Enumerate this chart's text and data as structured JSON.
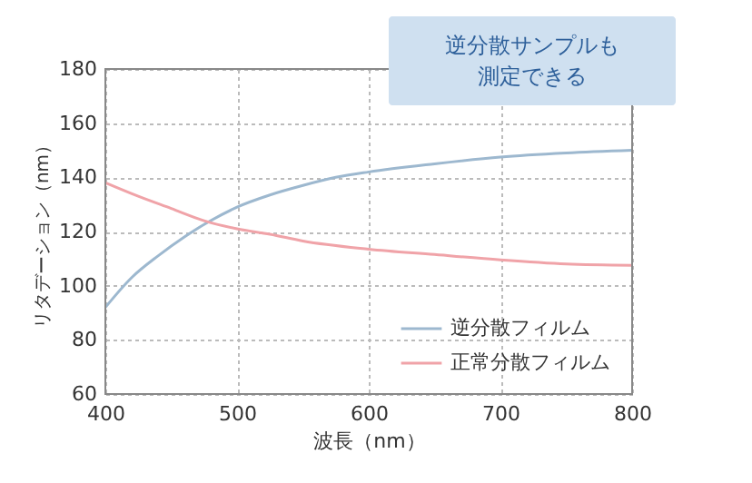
{
  "chart_data": {
    "type": "line",
    "xlabel": "波長（nm）",
    "ylabel": "リタデーション（nm）",
    "annotations": [
      "逆分散サンプルも",
      "測定できる"
    ],
    "xlim": [
      400,
      800
    ],
    "xticks": [
      400,
      500,
      600,
      700,
      800
    ],
    "ylim": [
      60,
      180
    ],
    "yticks": [
      60,
      80,
      100,
      120,
      140,
      160,
      180
    ],
    "grid": true,
    "legend": "bottom right",
    "line_style": "solid",
    "series": [
      {
        "name": "逆分散フィルム",
        "color": "#9db8cf",
        "x": [
          400,
          420,
          440,
          460,
          480,
          500,
          525,
          550,
          575,
          600,
          650,
          700,
          750,
          800
        ],
        "values": [
          92,
          103,
          111,
          118,
          124,
          129,
          133.5,
          137,
          140,
          142,
          145,
          147.5,
          149,
          150
        ]
      },
      {
        "name": "正常分散フィルム",
        "color": "#f0a3a8",
        "x": [
          400,
          425,
          450,
          475,
          500,
          525,
          550,
          600,
          650,
          700,
          750,
          800
        ],
        "values": [
          138,
          133,
          128.5,
          124,
          121,
          119,
          116.5,
          113.5,
          111.5,
          109.5,
          108,
          107.5
        ]
      }
    ]
  }
}
